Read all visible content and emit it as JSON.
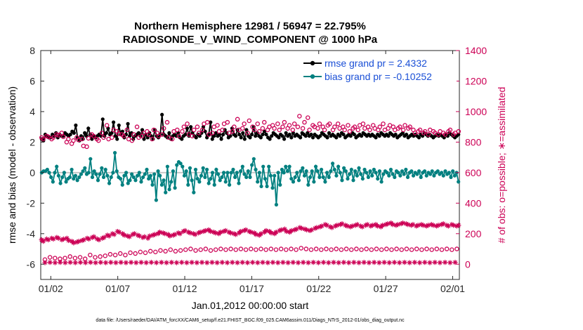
{
  "chart_data": {
    "type": "line",
    "title": "Northern Hemisphere 12981 / 56947 = 22.795%",
    "subtitle": "RADIOSONDE_V_WIND_COMPONENT @ 1000 hPa",
    "ylabel_left": "rmse and bias (model - observation)",
    "ylabel_right": "# of obs: o=possible; ∗=assimilated",
    "xlabel": "Jan.01,2012 00:00:00 start",
    "footer": "data file: /Users/raeder/DAI/ATM_forcXX/CAM6_setup/f.e21.FHIST_BGC.f09_025.CAM6assim.011/Diags_NTrS_2012-01/obs_diag_output.nc",
    "ylim_left": [
      -7,
      8
    ],
    "ylim_right": [
      -100,
      1400
    ],
    "xlim": [
      0.25,
      31.5
    ],
    "yticks_left": [
      "-6",
      "-4",
      "-2",
      "0",
      "2",
      "4",
      "6",
      "8"
    ],
    "yticks_right": [
      "0",
      "200",
      "400",
      "600",
      "800",
      "1000",
      "1200",
      "1400"
    ],
    "xticks": [
      {
        "day": 1.0,
        "label": "01/02"
      },
      {
        "day": 6.0,
        "label": "01/07"
      },
      {
        "day": 11.0,
        "label": "01/12"
      },
      {
        "day": 16.0,
        "label": "01/17"
      },
      {
        "day": 21.0,
        "label": "01/22"
      },
      {
        "day": 26.0,
        "label": "01/27"
      },
      {
        "day": 31.0,
        "label": "02/01"
      }
    ],
    "legend_position": "top-right",
    "zero_line": 0,
    "series": [
      {
        "name": "rmse",
        "legend": "rmse grand pr = 2.4332",
        "color": "#000000",
        "axis": "left",
        "values": [
          2.2,
          2.1,
          2.5,
          2.4,
          2.3,
          2.3,
          2.5,
          2.4,
          2.6,
          2.3,
          2.5,
          2.4,
          2.4,
          2.6,
          2.5,
          2.4,
          2.5,
          2.7,
          2.6,
          3.1,
          2.3,
          2.1,
          2.4,
          2.2,
          2.6,
          2.4,
          2.9,
          2.5,
          2.2,
          2.4,
          2.3,
          2.4,
          2.5,
          2.4,
          3.5,
          2.4,
          2.6,
          2.9,
          2.5,
          2.6,
          3.3,
          2.4,
          2.2,
          3.1,
          2.5,
          2.7,
          2.3,
          2.5,
          3.2,
          2.4,
          2.6,
          2.2,
          2.4,
          2.5,
          2.6,
          2.4,
          2.8,
          2.2,
          2.5,
          2.3,
          2.6,
          2.4,
          2.2,
          2.8,
          2.4,
          2.3,
          2.5,
          3.8,
          2.5,
          2.4,
          2.3,
          2.6,
          2.2,
          2.4,
          2.5,
          2.4,
          2.6,
          2.3,
          2.2,
          2.4,
          2.5,
          2.9,
          2.4,
          3.0,
          2.6,
          2.4,
          2.3,
          2.5,
          2.4,
          2.6,
          3.0,
          2.7,
          2.3,
          2.5,
          3.3,
          2.2,
          2.4,
          2.6,
          2.4,
          2.5,
          2.2,
          2.5,
          2.8,
          2.6,
          2.3,
          2.4,
          2.9,
          2.5,
          2.4,
          2.8,
          2.5,
          2.3,
          2.6,
          2.2,
          2.8,
          2.4,
          2.3,
          2.5,
          3.0,
          2.4,
          2.6,
          2.4,
          2.3,
          2.5,
          2.7,
          2.5,
          2.3,
          2.2,
          2.4,
          2.6,
          2.5,
          2.4,
          2.3,
          2.5,
          2.4,
          2.2,
          2.6,
          2.4,
          2.5,
          2.3,
          2.6,
          2.4,
          2.5,
          2.4,
          2.3,
          2.6,
          2.5,
          2.4,
          2.6,
          2.4,
          2.5,
          2.3,
          2.5,
          2.4,
          2.3,
          2.4,
          2.6,
          2.5,
          2.4,
          2.3,
          2.6,
          2.4,
          2.5,
          2.4,
          2.3,
          2.5,
          2.4,
          2.6,
          2.5,
          2.3,
          2.4,
          2.5,
          2.4,
          2.6,
          2.5,
          2.3,
          2.4,
          2.5,
          2.4,
          2.6,
          2.5,
          2.4,
          2.5,
          2.4,
          2.5,
          2.4,
          2.3,
          2.5,
          2.4,
          2.6,
          2.5,
          2.4,
          2.5,
          2.4,
          2.6,
          2.5,
          2.4,
          2.5,
          2.3,
          2.4,
          2.5,
          2.6,
          2.4,
          2.5,
          2.3,
          2.4,
          2.5,
          2.4,
          2.5,
          2.4,
          2.3,
          2.5,
          2.4,
          2.6,
          2.5,
          2.4,
          2.5,
          2.4,
          2.3,
          2.4,
          2.5,
          2.4,
          2.5,
          2.4,
          2.3,
          2.5,
          2.4,
          2.6,
          2.5,
          2.4,
          2.3,
          2.4,
          2.5
        ]
      },
      {
        "name": "bias",
        "legend": "bias grand pr = -0.10252",
        "color": "#008080",
        "axis": "left",
        "values": [
          0.0,
          0.1,
          0.1,
          0.2,
          0.0,
          -0.3,
          -0.6,
          0.0,
          0.4,
          -0.2,
          -0.7,
          -0.3,
          0.0,
          -0.6,
          -0.4,
          -0.3,
          0.2,
          -0.4,
          -0.2,
          -0.5,
          -0.3,
          -0.1,
          0.1,
          0.3,
          -0.1,
          0.0,
          0.9,
          -0.3,
          0.1,
          -0.1,
          -0.5,
          -0.1,
          0.3,
          -0.3,
          0.2,
          -0.2,
          -0.7,
          -0.3,
          0.0,
          1.3,
          0.1,
          -0.3,
          -0.4,
          -0.8,
          -0.2,
          0.0,
          -0.7,
          -0.5,
          -0.1,
          -0.3,
          -0.5,
          -0.2,
          0.0,
          -0.6,
          -0.3,
          -0.1,
          0.2,
          -0.4,
          -0.2,
          -0.8,
          -0.1,
          -1.8,
          0.1,
          -0.2,
          -0.8,
          -0.5,
          -1.3,
          0.4,
          -1.1,
          -0.6,
          0.1,
          -1.0,
          0.5,
          0.7,
          0.6,
          0.4,
          -0.2,
          0.1,
          -0.8,
          0.3,
          -0.5,
          -1.3,
          0.2,
          -0.4,
          -0.6,
          -0.2,
          0.3,
          -0.3,
          0.2,
          -0.7,
          -0.4,
          0.0,
          -0.8,
          0.2,
          -0.1,
          -0.5,
          -0.3,
          0.0,
          -0.6,
          0.0,
          -0.8,
          0.0,
          0.2,
          -0.3,
          0.0,
          -0.7,
          0.1,
          0.4,
          -0.1,
          -0.3,
          0.1,
          -0.3,
          0.5,
          0.9,
          0.2,
          -0.6,
          0.0,
          -0.9,
          0.4,
          -0.4,
          -0.9,
          0.4,
          -0.2,
          -1.0,
          -0.2,
          -2.1,
          0.0,
          -0.8,
          0.2,
          0.0,
          0.4,
          0.1,
          0.4,
          -0.4,
          -0.6,
          -0.3,
          0.0,
          -0.5,
          0.1,
          0.3,
          -0.2,
          0.1,
          -0.8,
          -0.3,
          0.1,
          -0.6,
          0.4,
          0.1,
          -0.3,
          0.2,
          -0.3,
          -0.6,
          0.0,
          -0.3,
          0.1,
          0.6,
          0.2,
          -0.2,
          0.4,
          0.0,
          -0.5,
          0.3,
          0.1,
          -0.4,
          -0.1,
          0.2,
          -0.5,
          0.1,
          -0.2,
          0.3,
          -0.1,
          -0.4,
          0.2,
          0.0,
          -0.3,
          0.1,
          -0.2,
          0.2,
          0.0,
          -0.4,
          0.1,
          -0.6,
          -0.1,
          0.1,
          0.0,
          -0.2,
          0.2,
          -0.1,
          -0.3,
          0.1,
          0.0,
          -0.2,
          0.1,
          -0.1,
          0.2,
          -0.3,
          0.0,
          0.1,
          -0.2,
          0.0,
          -0.1,
          0.1,
          -0.3,
          0.0,
          0.1,
          -0.2,
          0.0,
          -0.1,
          0.1,
          -0.2,
          0.0,
          0.1,
          -0.1,
          0.0,
          -0.2,
          0.1,
          -0.1,
          0.0,
          -0.3,
          0.1,
          -0.2,
          0.0,
          -0.6
        ]
      },
      {
        "name": "obs possible",
        "color": "#cc0055",
        "axis": "right",
        "marker": "o",
        "values": [
          830,
          820,
          30,
          840,
          835,
          45,
          820,
          830,
          40,
          850,
          845,
          35,
          860,
          835,
          40,
          800,
          820,
          50,
          790,
          810,
          40,
          830,
          815,
          45,
          820,
          775,
          35,
          770,
          825,
          60,
          850,
          840,
          45,
          820,
          810,
          50,
          860,
          830,
          55,
          910,
          820,
          65,
          830,
          880,
          60,
          870,
          855,
          70,
          850,
          840,
          60,
          880,
          820,
          75,
          810,
          850,
          70,
          900,
          830,
          80,
          840,
          860,
          75,
          870,
          850,
          85,
          820,
          880,
          80,
          860,
          840,
          90,
          850,
          890,
          85,
          930,
          830,
          95,
          820,
          870,
          85,
          880,
          840,
          90,
          870,
          900,
          95,
          920,
          850,
          100,
          840,
          880,
          90,
          900,
          860,
          95,
          880,
          920,
          100,
          930,
          850,
          90,
          860,
          900,
          95,
          910,
          870,
          100,
          880,
          920,
          95,
          930,
          860,
          100,
          870,
          900,
          95,
          950,
          880,
          100,
          890,
          920,
          95,
          860,
          940,
          100,
          900,
          880,
          95,
          920,
          870,
          100,
          890,
          930,
          95,
          880,
          900,
          100,
          910,
          890,
          95,
          920,
          880,
          100,
          900,
          930,
          95,
          890,
          910,
          100,
          880,
          920,
          95,
          900,
          970,
          105,
          890,
          930,
          100,
          960,
          880,
          95,
          910,
          900,
          100,
          890,
          920,
          95,
          900,
          880,
          100,
          910,
          920,
          95,
          880,
          900,
          100,
          920,
          890,
          95,
          900,
          880,
          100,
          910,
          870,
          95,
          890,
          900,
          100,
          880,
          910,
          95,
          920,
          890,
          100,
          900,
          880,
          95,
          910,
          890,
          100,
          880,
          900,
          95,
          920,
          880,
          100,
          890,
          910,
          95,
          900,
          880,
          100,
          890,
          900,
          95,
          880,
          910,
          100,
          890,
          900,
          95,
          880,
          860,
          100,
          870,
          880,
          95,
          860,
          870,
          100,
          850,
          880,
          95,
          870,
          860,
          100,
          850,
          870,
          95,
          860,
          850,
          100,
          870,
          880,
          95,
          850,
          860,
          100,
          870
        ]
      },
      {
        "name": "obs assimilated",
        "color": "#cc0055",
        "axis": "right",
        "marker": "*",
        "values": [
          160,
          150,
          10,
          165,
          160,
          12,
          170,
          165,
          10,
          175,
          170,
          12,
          160,
          165,
          10,
          170,
          155,
          12,
          150,
          140,
          10,
          145,
          150,
          12,
          155,
          160,
          10,
          170,
          165,
          12,
          175,
          180,
          10,
          165,
          160,
          12,
          170,
          175,
          10,
          190,
          185,
          12,
          200,
          195,
          10,
          215,
          210,
          12,
          200,
          190,
          10,
          185,
          180,
          12,
          195,
          200,
          10,
          190,
          185,
          12,
          175,
          180,
          10,
          170,
          185,
          12,
          190,
          195,
          10,
          200,
          210,
          12,
          205,
          200,
          10,
          195,
          185,
          12,
          190,
          195,
          10,
          205,
          200,
          12,
          215,
          220,
          10,
          210,
          205,
          12,
          200,
          195,
          10,
          205,
          210,
          12,
          215,
          220,
          10,
          225,
          215,
          12,
          210,
          205,
          10,
          200,
          210,
          12,
          215,
          220,
          10,
          210,
          205,
          12,
          200,
          195,
          10,
          205,
          215,
          12,
          220,
          225,
          10,
          215,
          210,
          12,
          205,
          195,
          10,
          190,
          200,
          12,
          210,
          220,
          10,
          215,
          205,
          12,
          200,
          210,
          10,
          220,
          225,
          12,
          230,
          215,
          10,
          210,
          220,
          12,
          225,
          230,
          10,
          240,
          235,
          12,
          230,
          225,
          10,
          220,
          225,
          12,
          235,
          240,
          10,
          245,
          250,
          12,
          260,
          255,
          10,
          245,
          240,
          12,
          250,
          255,
          10,
          260,
          265,
          12,
          255,
          250,
          10,
          245,
          250,
          12,
          255,
          260,
          10,
          250,
          245,
          12,
          255,
          260,
          10,
          250,
          255,
          12,
          260,
          250,
          10,
          245,
          255,
          12,
          260,
          265,
          10,
          270,
          260,
          12,
          255,
          260,
          10,
          265,
          270,
          12,
          265,
          260,
          10,
          255,
          260,
          12,
          250,
          255,
          10,
          260,
          255,
          12,
          250,
          255,
          10,
          260,
          255,
          12,
          250,
          255,
          10,
          260,
          265,
          12,
          255,
          250,
          10,
          260,
          255,
          12,
          250,
          255
        ]
      }
    ]
  }
}
